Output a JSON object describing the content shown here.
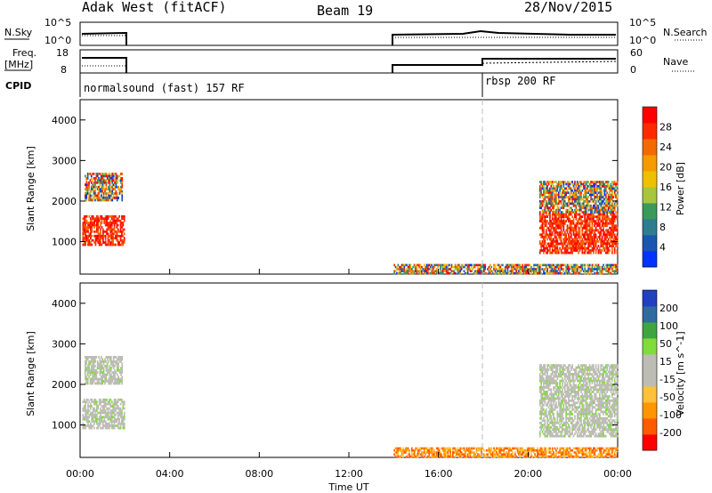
{
  "header": {
    "radar": "Adak West (fitACF)",
    "beam": "Beam 19",
    "date": "28/Nov/2015"
  },
  "panel_labels": {
    "nsky": "N.Sky",
    "nsearch": "N.Search",
    "freq": "Freq.",
    "freq_unit": "[MHz]",
    "nave": "Nave",
    "cpid": "CPID",
    "sky_ticks": [
      "10^5",
      "10^0"
    ],
    "search_ticks": [
      "10^5",
      "10^0"
    ],
    "freq_ticks": [
      "18",
      "8"
    ],
    "nave_ticks": [
      "60",
      "0"
    ],
    "cpid_1": "normalsound (fast) 157 RF",
    "cpid_2": "rbsp 200 RF"
  },
  "colors": {
    "power_scale": [
      "#0033ff",
      "#1a55b0",
      "#2e7d8f",
      "#3a9a5a",
      "#a7c63b",
      "#f0c000",
      "#f59a00",
      "#f26a00",
      "#ff2a00",
      "#ff0000"
    ],
    "velocity_scale": [
      "#ff0000",
      "#ff5a00",
      "#ff9600",
      "#ffc03a",
      "#bdbdb5",
      "#bdbdb5",
      "#7fdc3c",
      "#3fa540",
      "#2f6aa0",
      "#2040c0"
    ]
  },
  "chart_data": [
    {
      "type": "heatmap",
      "title": "Power",
      "ylabel": "Slant Range [km]",
      "colorbar_label": "Power [dB]",
      "colorbar_ticks": [
        "28",
        "24",
        "20",
        "16",
        "12",
        "8",
        "4"
      ],
      "x_ticks": [
        "00:00",
        "04:00",
        "08:00",
        "12:00",
        "16:00",
        "20:00",
        "00:00"
      ],
      "y_ticks": [
        "1000",
        "2000",
        "3000",
        "4000"
      ],
      "ylim": [
        200,
        4500
      ],
      "xlim_hours": [
        0,
        24
      ],
      "regions": [
        {
          "t0": 0.1,
          "t1": 2.0,
          "r0": 900,
          "r1": 1650,
          "level": "high"
        },
        {
          "t0": 0.2,
          "t1": 1.9,
          "r0": 2000,
          "r1": 2700,
          "level": "mixed"
        },
        {
          "t0": 14.0,
          "t1": 24.0,
          "r0": 200,
          "r1": 450,
          "level": "mixed"
        },
        {
          "t0": 20.5,
          "t1": 24.0,
          "r0": 700,
          "r1": 1700,
          "level": "high"
        },
        {
          "t0": 20.5,
          "t1": 24.0,
          "r0": 1700,
          "r1": 2500,
          "level": "mixed"
        }
      ]
    },
    {
      "type": "heatmap",
      "title": "Velocity",
      "ylabel": "Slant Range [km]",
      "colorbar_label": "Velocity [m s^-1]",
      "colorbar_ticks": [
        "200",
        "100",
        "50",
        "15",
        "-15",
        "-50",
        "-100",
        "-200"
      ],
      "x_ticks": [
        "00:00",
        "04:00",
        "08:00",
        "12:00",
        "16:00",
        "20:00",
        "00:00"
      ],
      "y_ticks": [
        "1000",
        "2000",
        "3000",
        "4000"
      ],
      "xlabel": "Time UT",
      "ylim": [
        200,
        4500
      ],
      "xlim_hours": [
        0,
        24
      ],
      "regions": [
        {
          "t0": 0.1,
          "t1": 2.0,
          "r0": 900,
          "r1": 1650,
          "level": "grey"
        },
        {
          "t0": 0.2,
          "t1": 1.9,
          "r0": 2000,
          "r1": 2700,
          "level": "grey"
        },
        {
          "t0": 14.0,
          "t1": 24.0,
          "r0": 200,
          "r1": 450,
          "level": "negative"
        },
        {
          "t0": 20.5,
          "t1": 24.0,
          "r0": 700,
          "r1": 2500,
          "level": "grey"
        }
      ]
    }
  ]
}
